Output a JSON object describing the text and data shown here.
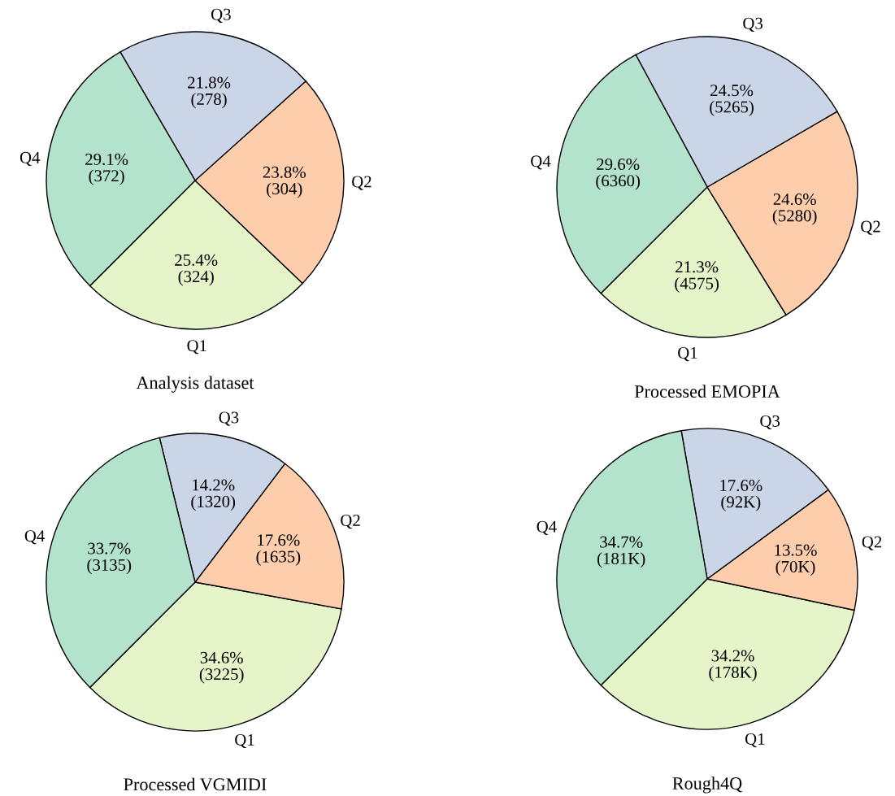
{
  "chart_data": [
    {
      "type": "pie",
      "title": "Analysis dataset",
      "categories": [
        "Q1",
        "Q2",
        "Q3",
        "Q4"
      ],
      "values": [
        324,
        304,
        278,
        372
      ],
      "value_labels": [
        "25.4%\n(324)",
        "23.8%\n(304)",
        "21.8%\n(278)",
        "29.1%\n(372)"
      ],
      "colors": [
        "#e6f5c9",
        "#fdcdac",
        "#cbd5e8",
        "#b3e2cd"
      ]
    },
    {
      "type": "pie",
      "title": "Processed EMOPIA",
      "categories": [
        "Q1",
        "Q2",
        "Q3",
        "Q4"
      ],
      "values": [
        4575,
        5280,
        5265,
        6360
      ],
      "value_labels": [
        "21.3%\n(4575)",
        "24.6%\n(5280)",
        "24.5%\n(5265)",
        "29.6%\n(6360)"
      ],
      "colors": [
        "#e6f5c9",
        "#fdcdac",
        "#cbd5e8",
        "#b3e2cd"
      ]
    },
    {
      "type": "pie",
      "title": "Processed VGMIDI",
      "categories": [
        "Q1",
        "Q2",
        "Q3",
        "Q4"
      ],
      "values": [
        3225,
        1635,
        1320,
        3135
      ],
      "value_labels": [
        "34.6%\n(3225)",
        "17.6%\n(1635)",
        "14.2%\n(1320)",
        "33.7%\n(3135)"
      ],
      "colors": [
        "#e6f5c9",
        "#fdcdac",
        "#cbd5e8",
        "#b3e2cd"
      ]
    },
    {
      "type": "pie",
      "title": "Rough4Q",
      "categories": [
        "Q1",
        "Q2",
        "Q3",
        "Q4"
      ],
      "values": [
        178000,
        70000,
        92000,
        181000
      ],
      "value_labels": [
        "34.2%\n(178K)",
        "13.5%\n(70K)",
        "17.6%\n(92K)",
        "34.7%\n(181K)"
      ],
      "colors": [
        "#e6f5c9",
        "#fdcdac",
        "#cbd5e8",
        "#b3e2cd"
      ]
    }
  ]
}
